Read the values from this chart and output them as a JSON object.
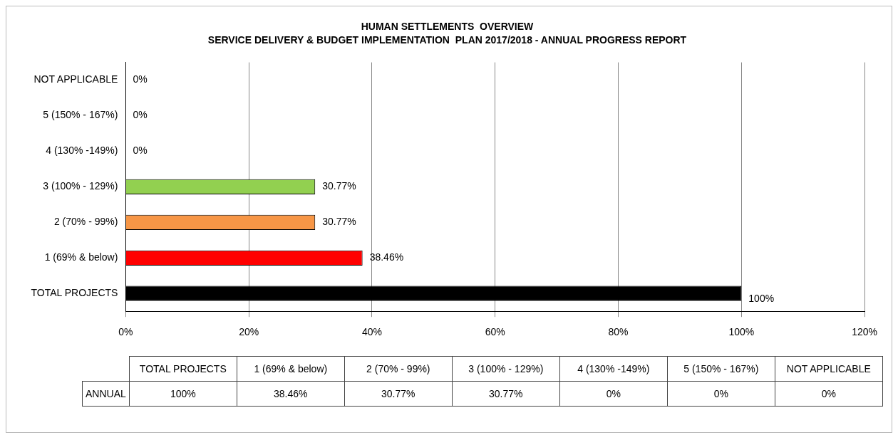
{
  "chart_data": {
    "type": "bar",
    "orientation": "horizontal",
    "title": "HUMAN SETTLEMENTS  OVERVIEW",
    "subtitle": "SERVICE DELIVERY & BUDGET IMPLEMENTATION  PLAN 2017/2018 - ANNUAL PROGRESS REPORT",
    "categories": [
      "NOT APPLICABLE",
      "5 (150% - 167%)",
      "4 (130% -149%)",
      "3 (100% - 129%)",
      "2 (70% - 99%)",
      "1 (69% & below)",
      "TOTAL PROJECTS"
    ],
    "values": [
      0,
      0,
      0,
      30.77,
      30.77,
      38.46,
      100
    ],
    "value_labels": [
      "0%",
      "0%",
      "0%",
      "30.77%",
      "30.77%",
      "38.46%",
      "100%"
    ],
    "colors": [
      "#000000",
      "#000000",
      "#000000",
      "#92d050",
      "#f79646",
      "#ff0000",
      "#000000"
    ],
    "xlim": [
      0,
      120
    ],
    "xticks": [
      {
        "value": 0,
        "label": "0%"
      },
      {
        "value": 20,
        "label": "20%"
      },
      {
        "value": 40,
        "label": "40%"
      },
      {
        "value": 60,
        "label": "60%"
      },
      {
        "value": 80,
        "label": "80%"
      },
      {
        "value": 100,
        "label": "100%"
      },
      {
        "value": 120,
        "label": "120%"
      }
    ],
    "grid": "x",
    "legend": false,
    "annotations": [
      "ANNUAL"
    ]
  }
}
